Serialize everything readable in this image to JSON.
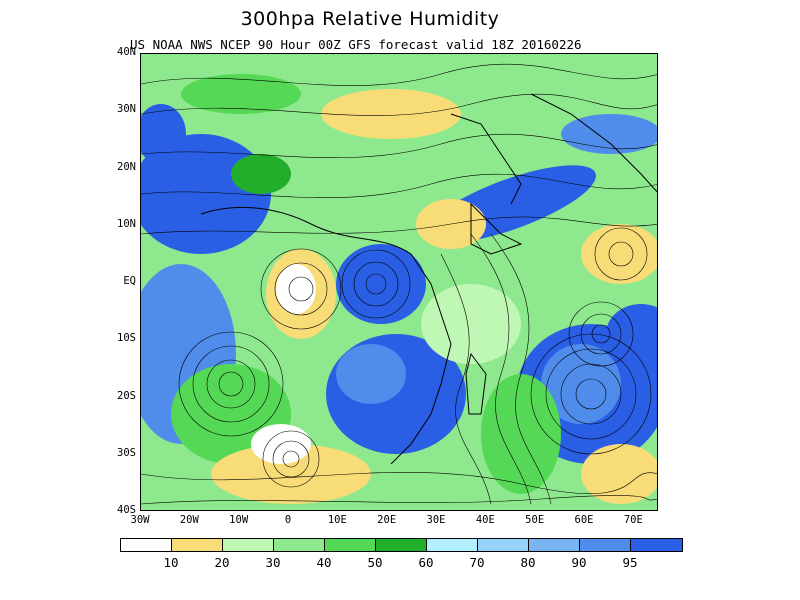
{
  "title": "300hpa Relative Humidity",
  "subtitle": "US NOAA NWS NCEP 90 Hour 00Z GFS forecast valid 18Z 20160226",
  "map": {
    "lat_labels": [
      "40N",
      "30N",
      "20N",
      "10N",
      "EQ",
      "10S",
      "20S",
      "30S",
      "40S"
    ],
    "lon_labels": [
      "30W",
      "20W",
      "10W",
      "0",
      "10E",
      "20E",
      "30E",
      "40E",
      "50E",
      "60E",
      "70E"
    ],
    "lat_range": [
      -40,
      40
    ],
    "lon_range": [
      -30,
      75
    ],
    "streamlines_overlay": true,
    "coastlines_overlay": true
  },
  "colorbar": {
    "colors": [
      "#ffffff",
      "#f8dc78",
      "#bff7b4",
      "#8ee88e",
      "#55d855",
      "#22ad2a",
      "#b2f0ff",
      "#96d2fa",
      "#78b4f2",
      "#508cea",
      "#2a5ee4"
    ],
    "labels": [
      "10",
      "20",
      "30",
      "40",
      "50",
      "60",
      "70",
      "80",
      "90",
      "95"
    ]
  }
}
